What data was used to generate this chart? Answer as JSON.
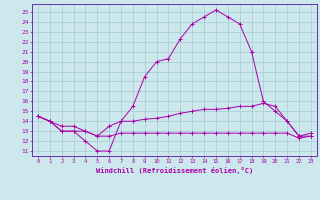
{
  "xlabel": "Windchill (Refroidissement éolien,°C)",
  "background_color": "#cce8ec",
  "grid_color": "#aacfd6",
  "line_color": "#aa00aa",
  "spine_color": "#6633aa",
  "x_ticks": [
    0,
    1,
    2,
    3,
    4,
    5,
    6,
    7,
    8,
    9,
    10,
    11,
    12,
    13,
    14,
    15,
    16,
    17,
    18,
    19,
    20,
    21,
    22,
    23
  ],
  "y_ticks": [
    11,
    12,
    13,
    14,
    15,
    16,
    17,
    18,
    19,
    20,
    21,
    22,
    23,
    24,
    25
  ],
  "ylim": [
    10.5,
    25.8
  ],
  "xlim": [
    -0.5,
    23.5
  ],
  "series1": [
    14.5,
    14.0,
    13.0,
    13.0,
    12.0,
    11.0,
    11.0,
    14.0,
    15.5,
    18.5,
    20.0,
    20.3,
    22.3,
    23.8,
    24.5,
    25.2,
    24.5,
    23.8,
    21.0,
    16.0,
    15.0,
    14.0,
    12.5,
    12.5
  ],
  "series2": [
    14.5,
    14.0,
    13.5,
    13.5,
    13.0,
    12.5,
    13.5,
    14.0,
    14.0,
    14.2,
    14.3,
    14.5,
    14.8,
    15.0,
    15.2,
    15.2,
    15.3,
    15.5,
    15.5,
    15.8,
    15.5,
    14.0,
    12.5,
    12.8
  ],
  "series3": [
    14.5,
    14.0,
    13.0,
    13.0,
    13.0,
    12.5,
    12.5,
    12.8,
    12.8,
    12.8,
    12.8,
    12.8,
    12.8,
    12.8,
    12.8,
    12.8,
    12.8,
    12.8,
    12.8,
    12.8,
    12.8,
    12.8,
    12.3,
    12.5
  ]
}
